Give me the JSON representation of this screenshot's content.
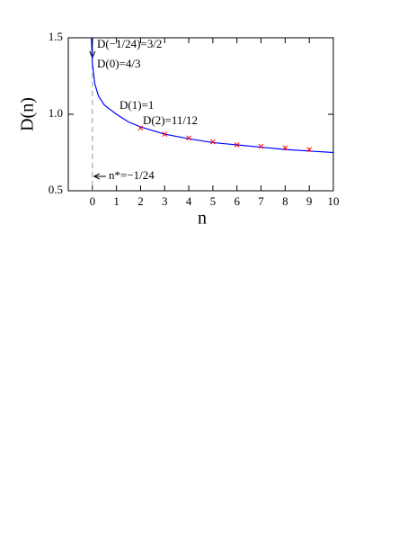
{
  "chart_data": {
    "type": "line",
    "xlabel": "n",
    "ylabel": "D(n)",
    "xlim": [
      -1,
      10
    ],
    "ylim": [
      0.5,
      1.5
    ],
    "xticks": [
      0,
      1,
      2,
      3,
      4,
      5,
      6,
      7,
      8,
      9,
      10
    ],
    "yticks": [
      0.5,
      {
        "value": 1,
        "label": "1.0"
      },
      1.5
    ],
    "series": [
      {
        "type": "line",
        "color": "#0000ff",
        "x": [
          -0.0417,
          0,
          0.1,
          0.25,
          0.5,
          1,
          1.5,
          2,
          3,
          4,
          5,
          6,
          7,
          8,
          9,
          10
        ],
        "values": [
          1.5,
          1.333,
          1.2,
          1.12,
          1.06,
          1.0,
          0.95,
          0.917,
          0.87,
          0.84,
          0.815,
          0.8,
          0.785,
          0.77,
          0.76,
          0.75
        ]
      },
      {
        "type": "scatter",
        "color": "#ff0000",
        "x": [
          2,
          3,
          4,
          5,
          6,
          7,
          8,
          9
        ],
        "values": [
          0.91,
          0.87,
          0.845,
          0.82,
          0.8,
          0.79,
          0.78,
          0.77
        ]
      }
    ],
    "annotations": [
      "D(−1/24)=3/2",
      "D(0)=4/3",
      "D(1)=1",
      "D(2)=11/12",
      "n*=−1/24"
    ]
  }
}
